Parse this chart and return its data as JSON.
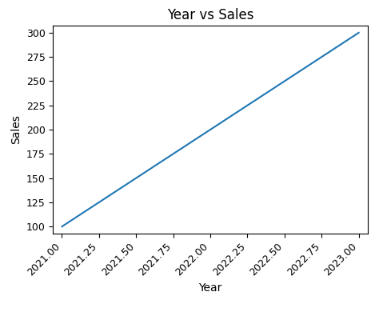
{
  "x": [
    2021.0,
    2021.25,
    2021.5,
    2021.75,
    2022.0,
    2022.25,
    2022.5,
    2022.75,
    2023.0
  ],
  "y": [
    100,
    125,
    150,
    175,
    200,
    225,
    250,
    275,
    300
  ],
  "line_color": "#1f77b4",
  "title": "Year vs Sales",
  "xlabel": "Year",
  "ylabel": "Sales",
  "xlim": [
    2020.94,
    2023.06
  ],
  "ylim": [
    93,
    307
  ],
  "xticks": [
    2021.0,
    2021.25,
    2021.5,
    2021.75,
    2022.0,
    2022.25,
    2022.5,
    2022.75,
    2023.0
  ],
  "yticks": [
    100,
    125,
    150,
    175,
    200,
    225,
    250,
    275,
    300
  ],
  "title_fontsize": 12,
  "label_fontsize": 10,
  "tick_fontsize": 9,
  "line_width": 1.5,
  "figsize": [
    4.74,
    4.05
  ],
  "dpi": 100
}
